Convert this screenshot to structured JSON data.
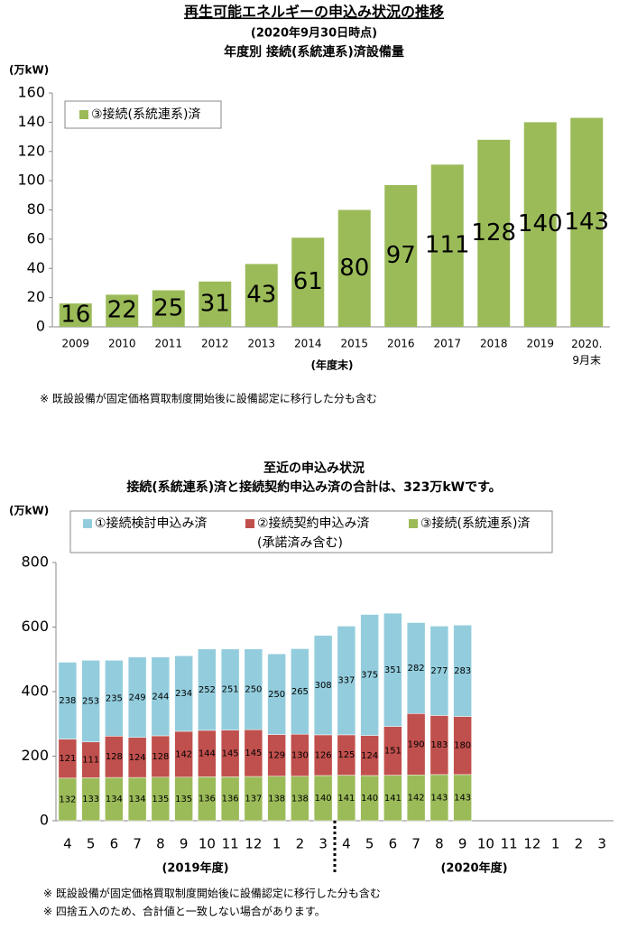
{
  "header": {
    "title": "再生可能エネルギーの申込み状況の推移",
    "date": "(2020年9月30日時点)"
  },
  "chart_data": [
    {
      "type": "bar",
      "title": "年度別 接続(系統連系)済設備量",
      "y_label": "(万kW)",
      "x_label": "(年度末)",
      "categories": [
        "2009",
        "2010",
        "2011",
        "2012",
        "2013",
        "2014",
        "2015",
        "2016",
        "2017",
        "2018",
        "2019",
        "2020.\n9月末"
      ],
      "series": [
        {
          "name": "③接続(系統連系)済",
          "color": "#9bbb59",
          "values": [
            16,
            22,
            25,
            31,
            43,
            61,
            80,
            97,
            111,
            128,
            140,
            143
          ]
        }
      ],
      "ylim": [
        0,
        160
      ],
      "yticks": [
        0,
        20,
        40,
        60,
        80,
        100,
        120,
        140,
        160
      ],
      "grid": false,
      "notes": [
        "※ 既設設備が固定価格買取制度開始後に設備認定に移行した分も含む"
      ]
    },
    {
      "type": "stacked_bar",
      "title": "至近の申込み状況",
      "subtitle": "接続(系統連系)済と接続契約申込み済の合計は、323万kWです。",
      "y_label": "(万kW)",
      "categories": [
        "4",
        "5",
        "6",
        "7",
        "8",
        "9",
        "10",
        "11",
        "12",
        "1",
        "2",
        "3",
        "4",
        "5",
        "6",
        "7",
        "8",
        "9",
        "10",
        "11",
        "12",
        "1",
        "2",
        "3"
      ],
      "groups": [
        "(2019年度)",
        "(2020年度)"
      ],
      "series": [
        {
          "name": "①接続検討申込み済",
          "color": "#93cddd",
          "values": [
            238,
            253,
            235,
            249,
            244,
            234,
            252,
            251,
            250,
            250,
            265,
            308,
            337,
            375,
            351,
            282,
            277,
            283,
            null,
            null,
            null,
            null,
            null,
            null
          ]
        },
        {
          "name": "②接続契約申込み済\n(承諾済み含む)",
          "color": "#c0504d",
          "values": [
            121,
            111,
            128,
            124,
            128,
            142,
            144,
            145,
            145,
            129,
            130,
            126,
            125,
            124,
            151,
            190,
            183,
            180,
            null,
            null,
            null,
            null,
            null,
            null
          ]
        },
        {
          "name": "③接続(系統連系)済",
          "color": "#9bbb59",
          "values": [
            132,
            133,
            134,
            134,
            135,
            135,
            136,
            136,
            137,
            138,
            138,
            140,
            141,
            140,
            141,
            142,
            143,
            143,
            null,
            null,
            null,
            null,
            null,
            null
          ]
        }
      ],
      "ylim": [
        0,
        800
      ],
      "yticks": [
        0,
        200,
        400,
        600,
        800
      ],
      "grid": false,
      "notes": [
        "※ 既設設備が固定価格買取制度開始後に設備認定に移行した分も含む",
        "※ 四捨五入のため、合計値と一致しない場合があります。"
      ]
    }
  ]
}
